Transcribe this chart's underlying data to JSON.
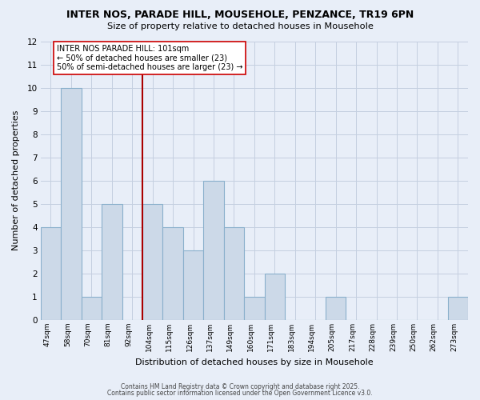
{
  "title1": "INTER NOS, PARADE HILL, MOUSEHOLE, PENZANCE, TR19 6PN",
  "title2": "Size of property relative to detached houses in Mousehole",
  "xlabel": "Distribution of detached houses by size in Mousehole",
  "ylabel": "Number of detached properties",
  "bin_labels": [
    "47sqm",
    "58sqm",
    "70sqm",
    "81sqm",
    "92sqm",
    "104sqm",
    "115sqm",
    "126sqm",
    "137sqm",
    "149sqm",
    "160sqm",
    "171sqm",
    "183sqm",
    "194sqm",
    "205sqm",
    "217sqm",
    "228sqm",
    "239sqm",
    "250sqm",
    "262sqm",
    "273sqm"
  ],
  "bar_heights": [
    4,
    10,
    1,
    5,
    0,
    5,
    4,
    3,
    6,
    4,
    1,
    2,
    0,
    0,
    1,
    0,
    0,
    0,
    0,
    0,
    1
  ],
  "bar_color": "#ccd9e8",
  "bar_edge_color": "#8ab0cc",
  "vline_x_index": 5,
  "vline_color": "#aa0000",
  "ylim": [
    0,
    12
  ],
  "yticks": [
    0,
    1,
    2,
    3,
    4,
    5,
    6,
    7,
    8,
    9,
    10,
    11,
    12
  ],
  "annotation_title": "INTER NOS PARADE HILL: 101sqm",
  "annotation_line1": "← 50% of detached houses are smaller (23)",
  "annotation_line2": "50% of semi-detached houses are larger (23) →",
  "annotation_box_color": "#ffffff",
  "annotation_box_edge": "#cc0000",
  "grid_color": "#c4cfe0",
  "background_color": "#e8eef8",
  "footer1": "Contains HM Land Registry data © Crown copyright and database right 2025.",
  "footer2": "Contains public sector information licensed under the Open Government Licence v3.0."
}
